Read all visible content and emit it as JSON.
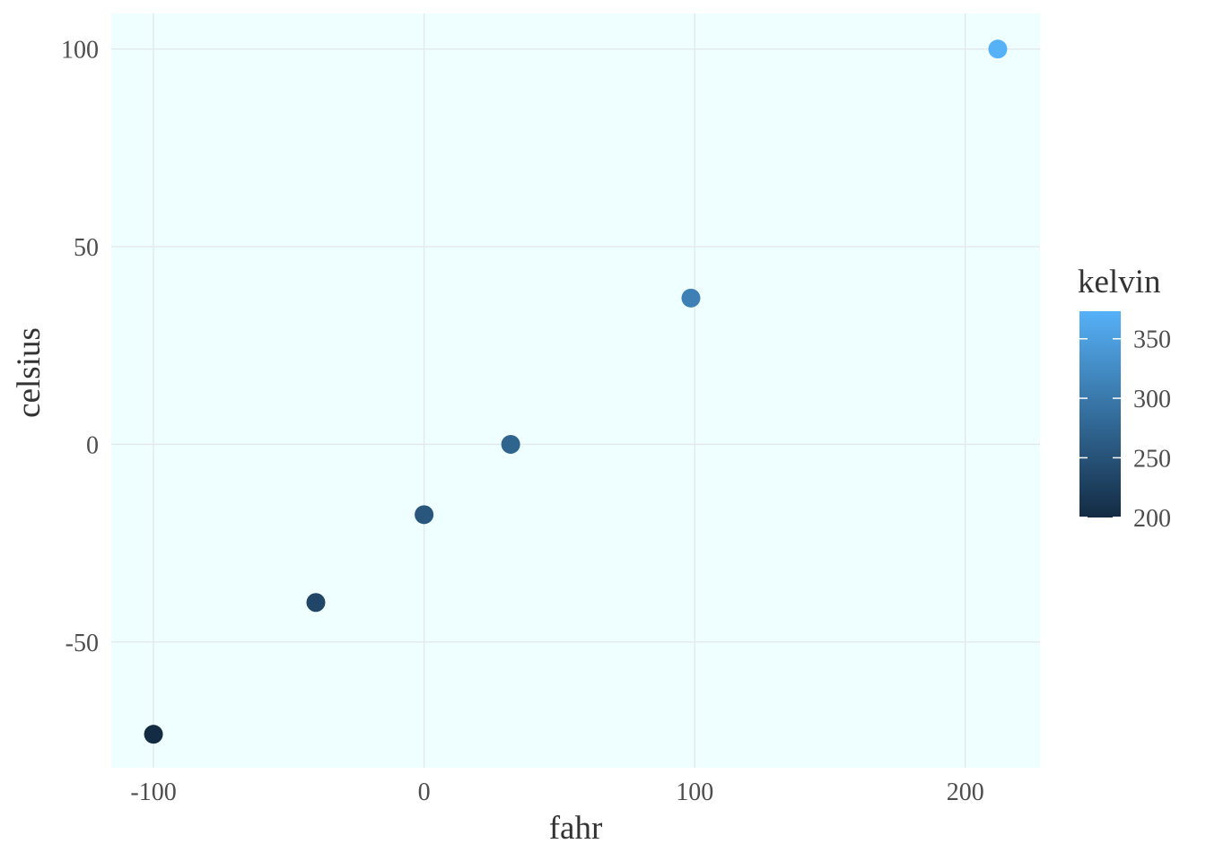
{
  "chart_data": {
    "type": "scatter",
    "title": "",
    "xlabel": "fahr",
    "ylabel": "celsius",
    "xlim": [
      -115.6,
      227.6
    ],
    "ylim": [
      -81.8,
      109.0
    ],
    "xticks": [
      -100,
      0,
      100,
      200
    ],
    "yticks": [
      -50,
      0,
      50,
      100
    ],
    "grid": true,
    "panel_background": "#efffff",
    "points": [
      {
        "fahr": -100,
        "celsius": -73.33,
        "kelvin": 199.82
      },
      {
        "fahr": -40,
        "celsius": -40,
        "kelvin": 233.15
      },
      {
        "fahr": 0,
        "celsius": -17.78,
        "kelvin": 255.37
      },
      {
        "fahr": 32,
        "celsius": 0,
        "kelvin": 273.15
      },
      {
        "fahr": 98.6,
        "celsius": 37,
        "kelvin": 310.15
      },
      {
        "fahr": 212,
        "celsius": 100,
        "kelvin": 373.15
      }
    ],
    "legend": {
      "title": "kelvin",
      "placement": "right",
      "breaks": [
        200,
        250,
        300,
        350
      ],
      "range": [
        199.82,
        373.15
      ],
      "low_color": "#132b43",
      "high_color": "#56b1f7"
    }
  }
}
